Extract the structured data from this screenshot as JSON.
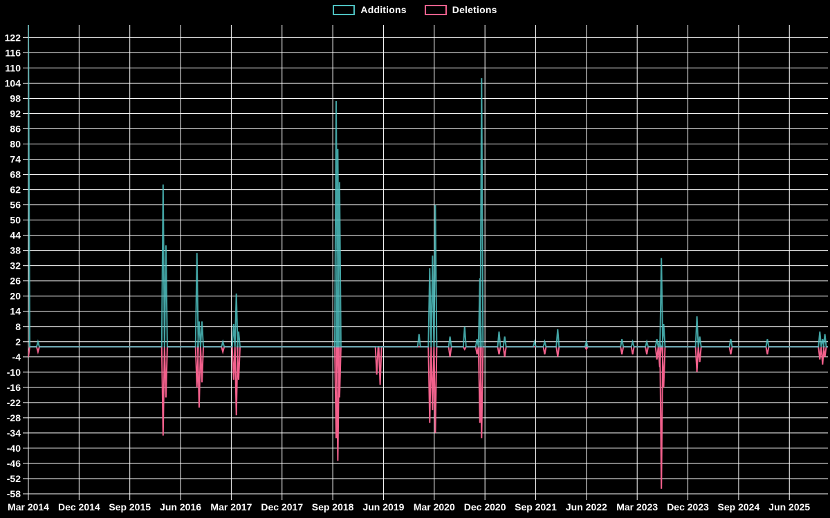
{
  "page": {
    "colors": {
      "background": "#000000",
      "grid": "#ffffff",
      "text": "#ffffff",
      "additions": "#4dbfbf",
      "deletions": "#f2608c"
    }
  },
  "chart_data": {
    "type": "line",
    "title": "",
    "legend_position": "top-center",
    "grid": true,
    "baseline": 0,
    "series": [
      {
        "name": "Additions",
        "color": "#4dbfbf"
      },
      {
        "name": "Deletions",
        "color": "#f2608c"
      }
    ],
    "x_axis": {
      "unit": "months since Mar 2014",
      "range_months": [
        0,
        141.7
      ],
      "tick_month_positions": [
        0,
        9,
        18,
        27,
        36,
        45,
        54,
        63,
        72,
        81,
        90,
        99,
        108,
        117,
        126,
        135
      ],
      "tick_labels": [
        "Mar 2014",
        "Dec 2014",
        "Sep 2015",
        "Jun 2016",
        "Mar 2017",
        "Dec 2017",
        "Sep 2018",
        "Jun 2019",
        "Mar 2020",
        "Dec 2020",
        "Sep 2021",
        "Jun 2022",
        "Mar 2023",
        "Dec 2023",
        "Sep 2024",
        "Jun 2025"
      ]
    },
    "y_axis": {
      "min": -58,
      "max": 127,
      "tick_min": -58,
      "tick_max": 122,
      "tick_step": 6,
      "tick_labels": [
        122,
        116,
        110,
        104,
        98,
        92,
        86,
        80,
        74,
        68,
        62,
        56,
        50,
        44,
        38,
        32,
        26,
        20,
        14,
        8,
        2,
        -4,
        -10,
        -16,
        -22,
        -28,
        -34,
        -40,
        -46,
        -52,
        -58
      ]
    },
    "points_note": "t = months after Mar 2014; add/del are weekly code additions/deletions; values between listed points are 0; first additions spike is clipped at the top of the plot",
    "points": [
      {
        "t": 0.0,
        "approx_date": "Mar 2014",
        "add": 128,
        "del": -4,
        "note": "clipped at top"
      },
      {
        "t": 1.7,
        "approx_date": "Apr 2014",
        "add": 2,
        "del": -2
      },
      {
        "t": 23.9,
        "approx_date": "Feb 2016",
        "add": 64,
        "del": -35
      },
      {
        "t": 24.4,
        "approx_date": "Mar 2016",
        "add": 40,
        "del": -20
      },
      {
        "t": 29.9,
        "approx_date": "Aug 2016",
        "add": 37,
        "del": -16
      },
      {
        "t": 30.3,
        "approx_date": "Sep 2016",
        "add": 10,
        "del": -24
      },
      {
        "t": 30.8,
        "approx_date": "Sep 2016",
        "add": 10,
        "del": -14
      },
      {
        "t": 34.5,
        "approx_date": "Jan 2017",
        "add": 2,
        "del": -2
      },
      {
        "t": 36.4,
        "approx_date": "Mar 2017",
        "add": 9,
        "del": -13
      },
      {
        "t": 36.9,
        "approx_date": "Mar 2017",
        "add": 21,
        "del": -27
      },
      {
        "t": 37.3,
        "approx_date": "Apr 2017",
        "add": 6,
        "del": -13
      },
      {
        "t": 54.6,
        "approx_date": "Sep 2018",
        "add": 97,
        "del": -36
      },
      {
        "t": 54.9,
        "approx_date": "Oct 2018",
        "add": 78,
        "del": -45
      },
      {
        "t": 55.2,
        "approx_date": "Oct 2018",
        "add": 65,
        "del": -20
      },
      {
        "t": 61.8,
        "approx_date": "May 2019",
        "add": 0,
        "del": -11
      },
      {
        "t": 62.4,
        "approx_date": "May 2019",
        "add": 0,
        "del": -15
      },
      {
        "t": 69.3,
        "approx_date": "Dec 2019",
        "add": 5,
        "del": 0
      },
      {
        "t": 71.2,
        "approx_date": "Feb 2020",
        "add": 31,
        "del": -30
      },
      {
        "t": 71.7,
        "approx_date": "Feb 2020",
        "add": 36,
        "del": -25
      },
      {
        "t": 72.2,
        "approx_date": "Mar 2020",
        "add": 56,
        "del": -34
      },
      {
        "t": 74.8,
        "approx_date": "May 2020",
        "add": 4,
        "del": -4
      },
      {
        "t": 77.4,
        "approx_date": "Aug 2020",
        "add": 8,
        "del": -1
      },
      {
        "t": 79.6,
        "approx_date": "Oct 2020",
        "add": 3,
        "del": -3
      },
      {
        "t": 80.1,
        "approx_date": "Nov 2020",
        "add": 27,
        "del": -30
      },
      {
        "t": 80.4,
        "approx_date": "Nov 2020",
        "add": 106,
        "del": -36
      },
      {
        "t": 83.5,
        "approx_date": "Feb 2021",
        "add": 6,
        "del": -3
      },
      {
        "t": 84.5,
        "approx_date": "Mar 2021",
        "add": 4,
        "del": -4
      },
      {
        "t": 89.8,
        "approx_date": "Aug 2021",
        "add": 2,
        "del": 0
      },
      {
        "t": 91.6,
        "approx_date": "Oct 2021",
        "add": 2,
        "del": -3
      },
      {
        "t": 93.9,
        "approx_date": "Dec 2021",
        "add": 7,
        "del": -4
      },
      {
        "t": 99.0,
        "approx_date": "Jun 2022",
        "add": 2,
        "del": -1
      },
      {
        "t": 105.3,
        "approx_date": "Dec 2022",
        "add": 3,
        "del": -3
      },
      {
        "t": 107.2,
        "approx_date": "Feb 2023",
        "add": 2,
        "del": -3
      },
      {
        "t": 109.7,
        "approx_date": "Apr 2023",
        "add": 2,
        "del": -3
      },
      {
        "t": 111.5,
        "approx_date": "Jun 2023",
        "add": 3,
        "del": -5
      },
      {
        "t": 112.0,
        "approx_date": "Jul 2023",
        "add": 2,
        "del": -8
      },
      {
        "t": 112.3,
        "approx_date": "Jul 2023",
        "add": 35,
        "del": -56
      },
      {
        "t": 112.7,
        "approx_date": "Jul 2023",
        "add": 9,
        "del": -16
      },
      {
        "t": 118.6,
        "approx_date": "Jan 2024",
        "add": 12,
        "del": -10
      },
      {
        "t": 119.1,
        "approx_date": "Feb 2024",
        "add": 4,
        "del": -6
      },
      {
        "t": 124.6,
        "approx_date": "Jul 2024",
        "add": 3,
        "del": -3
      },
      {
        "t": 131.1,
        "approx_date": "Feb 2025",
        "add": 3,
        "del": -3
      },
      {
        "t": 140.4,
        "approx_date": "Nov 2025",
        "add": 6,
        "del": -5
      },
      {
        "t": 140.9,
        "approx_date": "Nov 2025",
        "add": 3,
        "del": -7
      },
      {
        "t": 141.3,
        "approx_date": "Dec 2025",
        "add": 5,
        "del": -4
      }
    ]
  }
}
